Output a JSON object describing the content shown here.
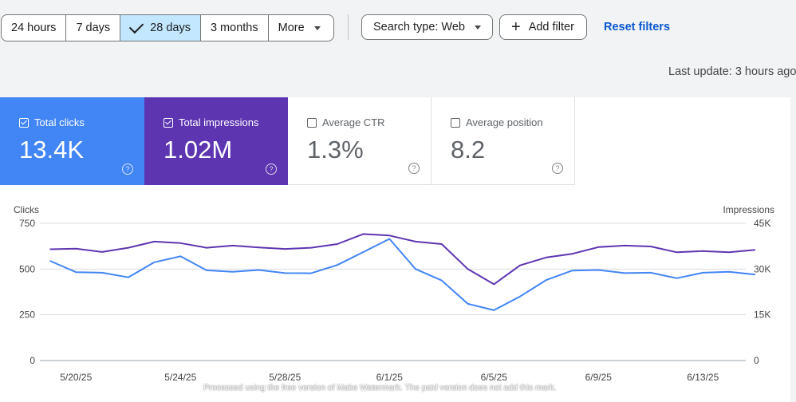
{
  "filters": {
    "ranges": [
      {
        "label": "24 hours",
        "selected": false
      },
      {
        "label": "7 days",
        "selected": false
      },
      {
        "label": "28 days",
        "selected": true
      },
      {
        "label": "3 months",
        "selected": false
      },
      {
        "label": "More",
        "selected": false
      }
    ],
    "search_type": "Search type: Web",
    "add_filter": "Add filter",
    "reset": "Reset filters"
  },
  "last_update": "Last update: 3 hours ago",
  "metrics": {
    "clicks": {
      "label": "Total clicks",
      "value": "13.4K",
      "checked": true,
      "color": "#4285f4"
    },
    "impressions": {
      "label": "Total impressions",
      "value": "1.02M",
      "checked": true,
      "color": "#5e35b1"
    },
    "ctr": {
      "label": "Average CTR",
      "value": "1.3%",
      "checked": false
    },
    "position": {
      "label": "Average position",
      "value": "8.2",
      "checked": false
    }
  },
  "help_glyph": "?",
  "footer_note": "Processed using the free version of Make Watermark. The paid version does not add this mark.",
  "chart_data": {
    "type": "line",
    "left_axis": {
      "label": "Clicks",
      "ticks": [
        "750",
        "500",
        "250",
        "0"
      ],
      "range": [
        0,
        750
      ]
    },
    "right_axis": {
      "label": "Impressions",
      "ticks": [
        "45K",
        "30K",
        "15K",
        "0"
      ],
      "range": [
        0,
        45000
      ]
    },
    "x_ticks": [
      {
        "label": "5/20/25",
        "index": 1
      },
      {
        "label": "5/24/25",
        "index": 5
      },
      {
        "label": "5/28/25",
        "index": 9
      },
      {
        "label": "6/1/25",
        "index": 13
      },
      {
        "label": "6/5/25",
        "index": 17
      },
      {
        "label": "6/9/25",
        "index": 21
      },
      {
        "label": "6/13/25",
        "index": 25
      }
    ],
    "grid": true,
    "series": [
      {
        "name": "Total clicks",
        "color": "#4285f4",
        "axis": "left",
        "values": [
          545,
          483,
          480,
          455,
          537,
          570,
          493,
          485,
          495,
          478,
          477,
          522,
          593,
          665,
          500,
          438,
          310,
          275,
          350,
          440,
          492,
          495,
          478,
          480,
          450,
          480,
          485,
          470
        ]
      },
      {
        "name": "Total impressions",
        "color": "#5e35b1",
        "axis": "right",
        "values": [
          36500,
          36700,
          35600,
          37000,
          39000,
          38500,
          37000,
          37700,
          37100,
          36600,
          37000,
          38200,
          41500,
          41000,
          39000,
          38200,
          30000,
          25000,
          31200,
          33800,
          35000,
          37200,
          37700,
          37400,
          35500,
          35900,
          35500,
          36300
        ]
      }
    ]
  }
}
